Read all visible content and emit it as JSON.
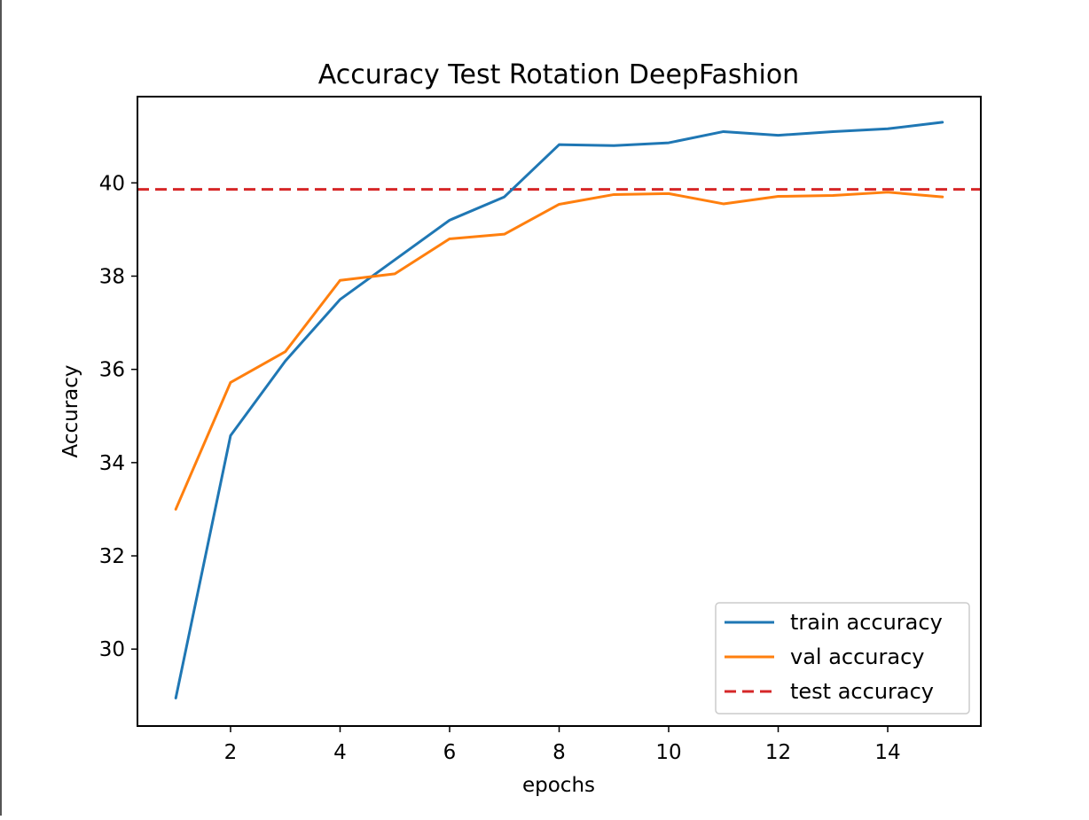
{
  "chart_data": {
    "type": "line",
    "title": "Accuracy Test Rotation DeepFashion",
    "xlabel": "epochs",
    "ylabel": "Accuracy",
    "xlim": [
      0.3,
      15.7
    ],
    "ylim": [
      28.35,
      41.85
    ],
    "xticks": [
      2,
      4,
      6,
      8,
      10,
      12,
      14
    ],
    "yticks": [
      30,
      32,
      34,
      36,
      38,
      40
    ],
    "x": [
      1,
      2,
      3,
      4,
      5,
      6,
      7,
      8,
      9,
      10,
      11,
      12,
      13,
      14,
      15
    ],
    "series": [
      {
        "name": "train accuracy",
        "color": "#1f77b4",
        "style": "solid",
        "values": [
          28.95,
          34.58,
          36.18,
          37.5,
          38.35,
          39.2,
          39.7,
          40.82,
          40.8,
          40.86,
          41.1,
          41.02,
          41.1,
          41.16,
          41.3
        ]
      },
      {
        "name": "val accuracy",
        "color": "#ff7f0e",
        "style": "solid",
        "values": [
          33.0,
          35.72,
          36.38,
          37.91,
          38.05,
          38.8,
          38.9,
          39.54,
          39.75,
          39.77,
          39.55,
          39.71,
          39.73,
          39.8,
          39.7
        ]
      }
    ],
    "reference_lines": [
      {
        "name": "test accuracy",
        "color": "#d62728",
        "style": "dashed",
        "value": 39.86
      }
    ],
    "grid": false,
    "legend_position": "lower right"
  }
}
